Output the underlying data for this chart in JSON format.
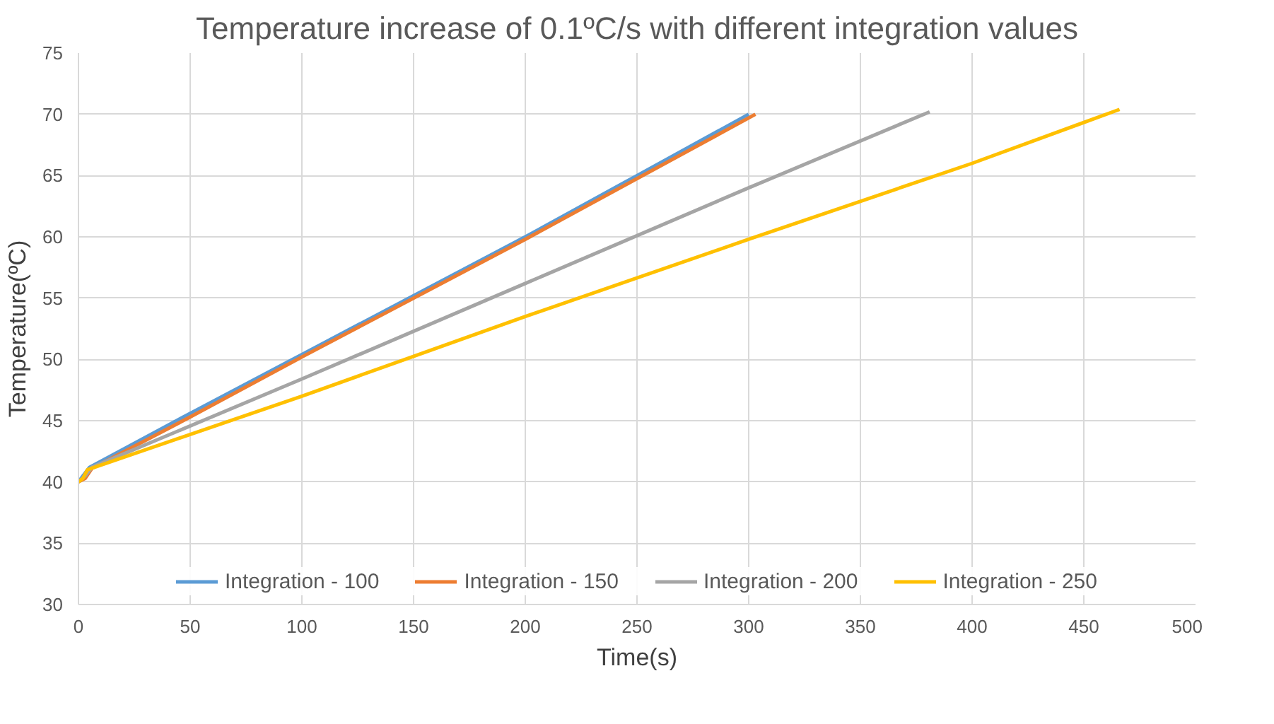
{
  "chart_data": {
    "type": "line",
    "title": "Temperature increase of 0.1ºC/s with different integration values",
    "xlabel": "Time(s)",
    "ylabel": "Temperature(ºC)",
    "xlim": [
      0,
      500
    ],
    "xticks": [
      0,
      50,
      100,
      150,
      200,
      250,
      300,
      350,
      400,
      450,
      500
    ],
    "ylim": [
      30,
      75
    ],
    "yticks": [
      30,
      35,
      40,
      45,
      50,
      55,
      60,
      65,
      70,
      75
    ],
    "grid": true,
    "legend": "bottom",
    "marker": "none",
    "line_style": "solid",
    "series": [
      {
        "name": "Integration - 100",
        "color": "#5b9bd5",
        "x": [
          0,
          2,
          5,
          50,
          100,
          150,
          200,
          250,
          300
        ],
        "values": [
          40,
          40.5,
          41.2,
          45.6,
          50.4,
          55.2,
          60,
          65,
          70
        ]
      },
      {
        "name": "Integration - 150",
        "color": "#ed7d31",
        "x": [
          0,
          3,
          6,
          50,
          100,
          200,
          303
        ],
        "values": [
          40,
          40.3,
          41.1,
          45.3,
          50.2,
          59.8,
          70
        ]
      },
      {
        "name": "Integration - 200",
        "color": "#a5a5a5",
        "x": [
          0,
          3,
          6,
          100,
          200,
          300,
          381
        ],
        "values": [
          40,
          40.5,
          41.2,
          48.4,
          56.2,
          64,
          70.2
        ]
      },
      {
        "name": "Integration - 250",
        "color": "#ffc000",
        "x": [
          0,
          2,
          4,
          100,
          200,
          300,
          400,
          466
        ],
        "values": [
          40,
          40.3,
          41,
          47,
          53.5,
          59.8,
          66,
          70.4
        ]
      }
    ]
  }
}
